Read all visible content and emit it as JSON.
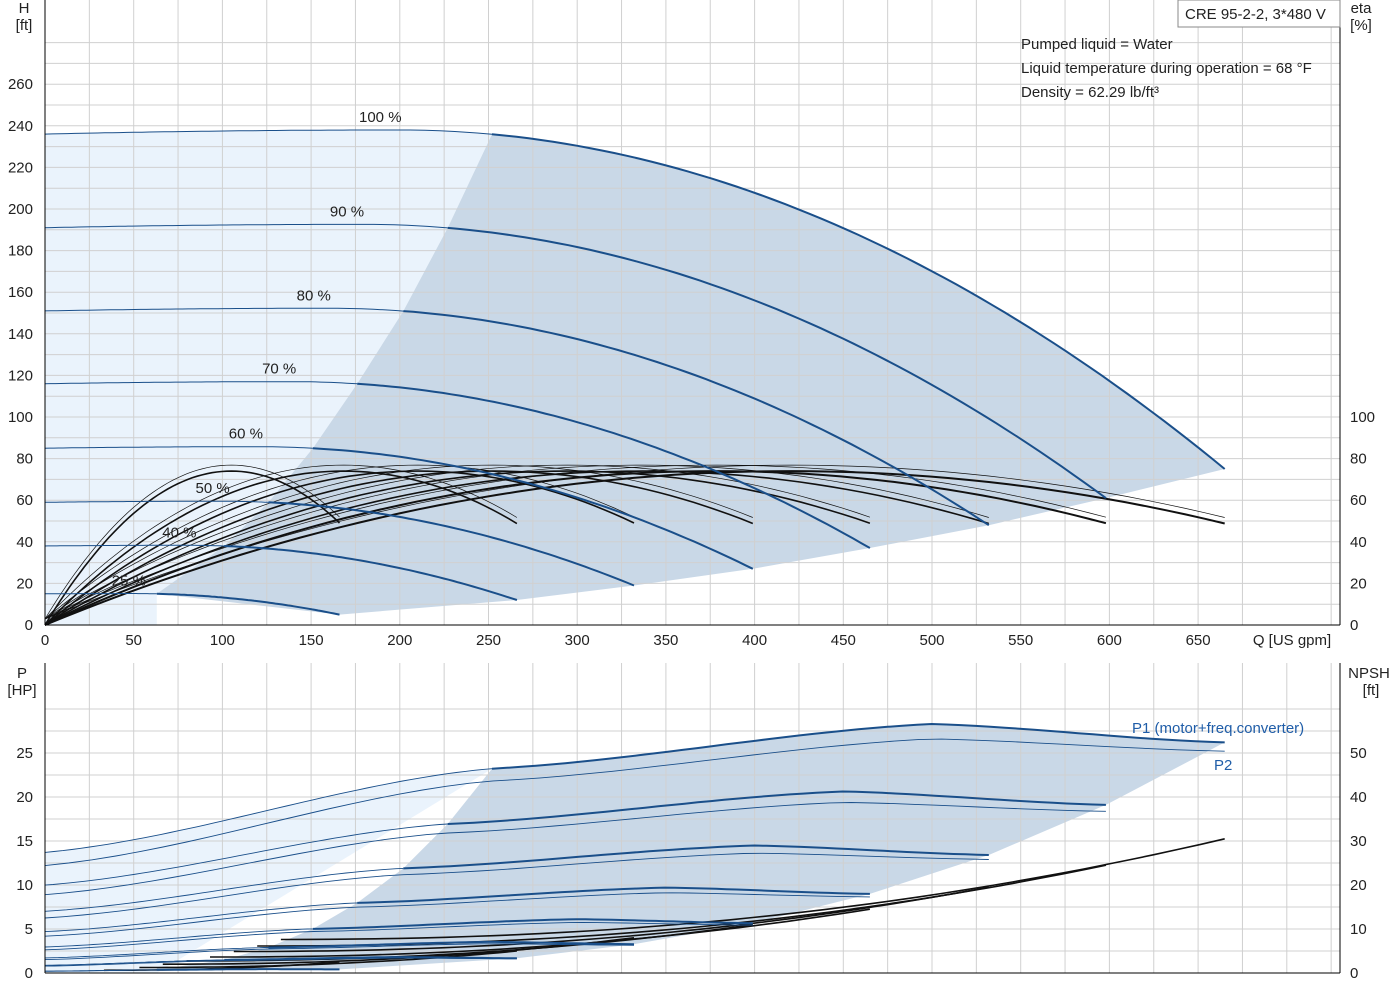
{
  "chart_data": [
    {
      "type": "line",
      "id": "head",
      "y_axis_label": [
        "H",
        "[ft]"
      ],
      "y2_axis_label": [
        "eta",
        "[%]"
      ],
      "x_axis_label": "Q [US gpm]",
      "xlim": [
        0,
        735
      ],
      "ylim": [
        0,
        280
      ],
      "x_ticks": [
        0,
        50,
        100,
        150,
        200,
        250,
        300,
        350,
        400,
        450,
        500,
        550,
        600,
        650
      ],
      "y_ticks": [
        0,
        20,
        40,
        60,
        80,
        100,
        120,
        140,
        160,
        180,
        200,
        220,
        240,
        260
      ],
      "y2_ticks": [
        0,
        20,
        40,
        60,
        80,
        100
      ],
      "grid": true,
      "title_box": "CRE 95-2-2, 3*480 V",
      "info_lines": [
        "Pumped liquid = Water",
        "Liquid temperature during operation = 68 °F",
        "Density = 62.29 lb/ft³"
      ],
      "speed_curves": [
        {
          "label": "100 %",
          "speed": 1.0,
          "h0": 236,
          "qmax": 665,
          "qmin": 252,
          "hend": 75
        },
        {
          "label": "90 %",
          "speed": 0.9,
          "h0": 191,
          "qmax": 598,
          "qmin": 227,
          "hend": 61
        },
        {
          "label": "80 %",
          "speed": 0.8,
          "h0": 151,
          "qmax": 532,
          "qmin": 202,
          "hend": 48
        },
        {
          "label": "70 %",
          "speed": 0.7,
          "h0": 116,
          "qmax": 465,
          "qmin": 176,
          "hend": 37
        },
        {
          "label": "60 %",
          "speed": 0.6,
          "h0": 85,
          "qmax": 399,
          "qmin": 151,
          "hend": 27
        },
        {
          "label": "50 %",
          "speed": 0.5,
          "h0": 59,
          "qmax": 332,
          "qmin": 126,
          "hend": 19
        },
        {
          "label": "40 %",
          "speed": 0.4,
          "h0": 38,
          "qmax": 266,
          "qmin": 101,
          "hend": 12
        },
        {
          "label": "25 %",
          "speed": 0.25,
          "h0": 15,
          "qmax": 166,
          "qmin": 63,
          "hend": 5
        }
      ],
      "efficiency_peak": 74,
      "efficiency_peak_at_full_speed_q": 420
    },
    {
      "type": "line",
      "id": "power",
      "y_axis_label": [
        "P",
        "[HP]"
      ],
      "y2_axis_label": [
        "NPSH",
        "[ft]"
      ],
      "xlim": [
        0,
        735
      ],
      "ylim": [
        0,
        30
      ],
      "y2lim": [
        0,
        60
      ],
      "y_ticks": [
        0,
        5,
        10,
        15,
        20,
        25
      ],
      "y2_ticks": [
        0,
        10,
        20,
        30,
        40,
        50
      ],
      "grid": true,
      "series_labels": {
        "p1": "P1 (motor+freq.converter)",
        "p2": "P2"
      },
      "p1_full_speed": {
        "q": [
          0,
          250,
          500,
          665
        ],
        "p": [
          13.7,
          23.2,
          28.3,
          26.2
        ]
      },
      "p2_full_speed": {
        "q": [
          0,
          250,
          500,
          665
        ],
        "p": [
          12.2,
          21.8,
          26.6,
          25.2
        ]
      },
      "npsh_end_values": [
        30.5,
        24.5,
        19.5,
        14.5,
        11.0,
        8.0,
        5.0,
        2.5
      ]
    }
  ],
  "colors": {
    "curve_blue": "#1a4f8a",
    "fill_light": "#eaf3fc",
    "fill_dark": "#c9d8e7",
    "efficiency": "#111111",
    "label_blue": "#1f5da8"
  }
}
